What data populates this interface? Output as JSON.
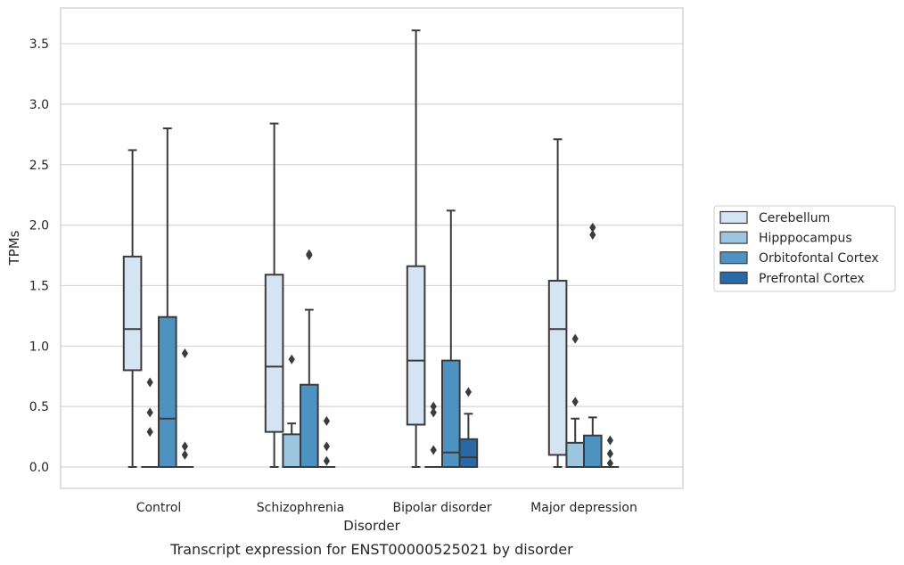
{
  "chart_data": {
    "type": "box",
    "title": "",
    "caption": "Transcript expression for ENST00000525021 by disorder",
    "xlabel": "Disorder",
    "ylabel": "TPMs",
    "ylim": [
      -0.17,
      3.77
    ],
    "yticks": [
      "0.0",
      "0.5",
      "1.0",
      "1.5",
      "2.0",
      "2.5",
      "3.0",
      "3.5"
    ],
    "grid": "horizontal",
    "legend_position": "right",
    "categories": [
      "Control",
      "Schizophrenia",
      "Bipolar disorder",
      "Major depression"
    ],
    "series": [
      {
        "name": "Cerebellum",
        "color": "#d4e4f2",
        "boxes": [
          {
            "whislo": 0.0,
            "q1": 0.8,
            "med": 1.14,
            "q3": 1.74,
            "whishi": 2.62,
            "fliers": []
          },
          {
            "whislo": 0.0,
            "q1": 0.29,
            "med": 0.83,
            "q3": 1.59,
            "whishi": 2.84,
            "fliers": []
          },
          {
            "whislo": 0.0,
            "q1": 0.35,
            "med": 0.88,
            "q3": 1.66,
            "whishi": 3.61,
            "fliers": []
          },
          {
            "whislo": 0.0,
            "q1": 0.1,
            "med": 1.14,
            "q3": 1.54,
            "whishi": 2.71,
            "fliers": []
          }
        ]
      },
      {
        "name": "Hipppocampus",
        "color": "#9cc6df",
        "boxes": [
          {
            "whislo": 0.0,
            "q1": 0.0,
            "med": 0.0,
            "q3": 0.0,
            "whishi": 0.0,
            "fliers": [
              0.29,
              0.45,
              0.7
            ]
          },
          {
            "whislo": 0.0,
            "q1": 0.0,
            "med": 0.0,
            "q3": 0.27,
            "whishi": 0.36,
            "fliers": [
              0.89
            ]
          },
          {
            "whislo": 0.0,
            "q1": 0.0,
            "med": 0.0,
            "q3": 0.0,
            "whishi": 0.0,
            "fliers": [
              0.14,
              0.45,
              0.5
            ]
          },
          {
            "whislo": 0.0,
            "q1": 0.0,
            "med": 0.0,
            "q3": 0.2,
            "whishi": 0.4,
            "fliers": [
              0.54,
              1.06
            ]
          }
        ]
      },
      {
        "name": "Orbitofontal Cortex",
        "color": "#4e92c2",
        "boxes": [
          {
            "whislo": 0.0,
            "q1": 0.0,
            "med": 0.4,
            "q3": 1.24,
            "whishi": 2.8,
            "fliers": []
          },
          {
            "whislo": 0.0,
            "q1": 0.0,
            "med": 0.0,
            "q3": 0.68,
            "whishi": 1.3,
            "fliers": [
              1.75,
              1.76
            ]
          },
          {
            "whislo": 0.0,
            "q1": 0.0,
            "med": 0.12,
            "q3": 0.88,
            "whishi": 2.12,
            "fliers": []
          },
          {
            "whislo": 0.0,
            "q1": 0.0,
            "med": 0.0,
            "q3": 0.26,
            "whishi": 0.41,
            "fliers": [
              1.92,
              1.98
            ]
          }
        ]
      },
      {
        "name": "Prefrontal Cortex",
        "color": "#2a69a6",
        "boxes": [
          {
            "whislo": 0.0,
            "q1": 0.0,
            "med": 0.0,
            "q3": 0.0,
            "whishi": 0.0,
            "fliers": [
              0.1,
              0.17,
              0.94
            ]
          },
          {
            "whislo": 0.0,
            "q1": 0.0,
            "med": 0.0,
            "q3": 0.0,
            "whishi": 0.0,
            "fliers": [
              0.05,
              0.17,
              0.38
            ]
          },
          {
            "whislo": 0.0,
            "q1": 0.0,
            "med": 0.08,
            "q3": 0.23,
            "whishi": 0.44,
            "fliers": [
              0.62
            ]
          },
          {
            "whislo": 0.0,
            "q1": 0.0,
            "med": 0.0,
            "q3": 0.0,
            "whishi": 0.0,
            "fliers": [
              0.03,
              0.11,
              0.22
            ]
          }
        ]
      }
    ]
  }
}
